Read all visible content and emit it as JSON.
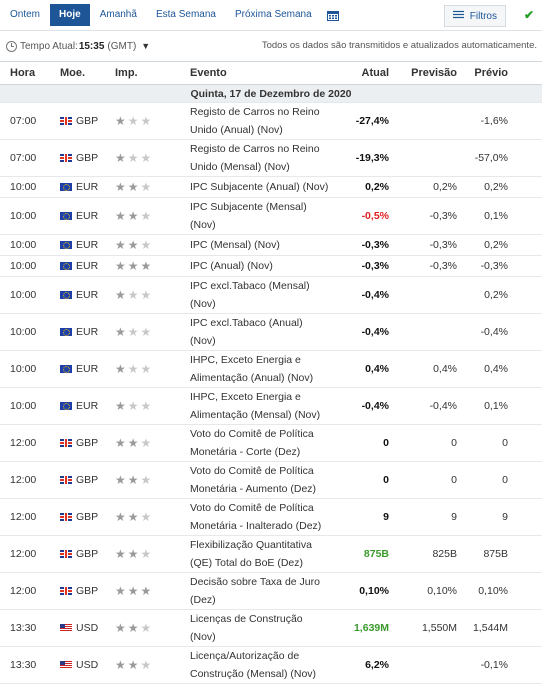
{
  "tabs": [
    {
      "label": "Ontem",
      "active": false
    },
    {
      "label": "Hoje",
      "active": true
    },
    {
      "label": "Amanhã",
      "active": false
    },
    {
      "label": "Esta Semana",
      "active": false
    },
    {
      "label": "Próxima Semana",
      "active": false
    }
  ],
  "filters_label": "Filtros",
  "timebar": {
    "label": "Tempo Atual:",
    "time": "15:35",
    "zone": "(GMT)",
    "notice": "Todos os dados são transmitidos e atualizados automaticamente."
  },
  "columns": {
    "hora": "Hora",
    "moeda": "Moe.",
    "imp": "Imp.",
    "evento": "Evento",
    "atual": "Atual",
    "previsao": "Previsão",
    "previo": "Prévio"
  },
  "date_header": "Quinta, 17 de Dezembro de 2020",
  "colors": {
    "accent": "#1d5596",
    "better": "#3a9a2c",
    "worse": "#e02020"
  },
  "rows": [
    {
      "time": "07:00",
      "flag": "gb",
      "cur": "GBP",
      "imp": 1,
      "event": "Registo de Carros no Reino Unido (Anual) (Nov)",
      "actual": "-27,4%",
      "astate": "black",
      "forecast": "",
      "previous": "-1,6%"
    },
    {
      "time": "07:00",
      "flag": "gb",
      "cur": "GBP",
      "imp": 1,
      "event": "Registo de Carros no Reino Unido (Mensal) (Nov)",
      "actual": "-19,3%",
      "astate": "black",
      "forecast": "",
      "previous": "-57,0%"
    },
    {
      "time": "10:00",
      "flag": "eu",
      "cur": "EUR",
      "imp": 2,
      "event": "IPC Subjacente (Anual) (Nov)",
      "actual": "0,2%",
      "astate": "black",
      "forecast": "0,2%",
      "previous": "0,2%"
    },
    {
      "time": "10:00",
      "flag": "eu",
      "cur": "EUR",
      "imp": 2,
      "event": "IPC Subjacente (Mensal) (Nov)",
      "actual": "-0,5%",
      "astate": "red",
      "forecast": "-0,3%",
      "previous": "0,1%"
    },
    {
      "time": "10:00",
      "flag": "eu",
      "cur": "EUR",
      "imp": 2,
      "event": "IPC (Mensal) (Nov)",
      "actual": "-0,3%",
      "astate": "black",
      "forecast": "-0,3%",
      "previous": "0,2%"
    },
    {
      "time": "10:00",
      "flag": "eu",
      "cur": "EUR",
      "imp": 3,
      "event": "IPC (Anual) (Nov)",
      "actual": "-0,3%",
      "astate": "black",
      "forecast": "-0,3%",
      "previous": "-0,3%"
    },
    {
      "time": "10:00",
      "flag": "eu",
      "cur": "EUR",
      "imp": 1,
      "event": "IPC excl.Tabaco (Mensal) (Nov)",
      "actual": "-0,4%",
      "astate": "black",
      "forecast": "",
      "previous": "0,2%"
    },
    {
      "time": "10:00",
      "flag": "eu",
      "cur": "EUR",
      "imp": 1,
      "event": "IPC excl.Tabaco (Anual) (Nov)",
      "actual": "-0,4%",
      "astate": "black",
      "forecast": "",
      "previous": "-0,4%"
    },
    {
      "time": "10:00",
      "flag": "eu",
      "cur": "EUR",
      "imp": 1,
      "event": "IHPC, Exceto Energia e Alimentação (Anual) (Nov)",
      "actual": "0,4%",
      "astate": "black",
      "forecast": "0,4%",
      "previous": "0,4%"
    },
    {
      "time": "10:00",
      "flag": "eu",
      "cur": "EUR",
      "imp": 1,
      "event": "IHPC, Exceto Energia e Alimentação (Mensal) (Nov)",
      "actual": "-0,4%",
      "astate": "black",
      "forecast": "-0,4%",
      "previous": "0,1%"
    },
    {
      "time": "12:00",
      "flag": "gb",
      "cur": "GBP",
      "imp": 2,
      "event": "Voto do Comitê de Política Monetária - Corte (Dez)",
      "actual": "0",
      "astate": "black",
      "forecast": "0",
      "previous": "0"
    },
    {
      "time": "12:00",
      "flag": "gb",
      "cur": "GBP",
      "imp": 2,
      "event": "Voto do Comitê de Política Monetária - Aumento (Dez)",
      "actual": "0",
      "astate": "black",
      "forecast": "0",
      "previous": "0"
    },
    {
      "time": "12:00",
      "flag": "gb",
      "cur": "GBP",
      "imp": 2,
      "event": "Voto do Comitê de Política Monetária - Inalterado (Dez)",
      "actual": "9",
      "astate": "black",
      "forecast": "9",
      "previous": "9"
    },
    {
      "time": "12:00",
      "flag": "gb",
      "cur": "GBP",
      "imp": 2,
      "event": "Flexibilização Quantitativa (QE) Total do BoE (Dez)",
      "actual": "875B",
      "astate": "green",
      "forecast": "825B",
      "previous": "875B"
    },
    {
      "time": "12:00",
      "flag": "gb",
      "cur": "GBP",
      "imp": 3,
      "event": "Decisão sobre Taxa de Juro (Dez)",
      "actual": "0,10%",
      "astate": "black",
      "forecast": "0,10%",
      "previous": "0,10%"
    },
    {
      "time": "13:30",
      "flag": "us",
      "cur": "USD",
      "imp": 2,
      "event": "Licenças de Construção (Nov)",
      "actual": "1,639M",
      "astate": "green",
      "forecast": "1,550M",
      "previous": "1,544M"
    },
    {
      "time": "13:30",
      "flag": "us",
      "cur": "USD",
      "imp": 2,
      "event": "Licença/Autorização de Construção (Mensal) (Nov)",
      "actual": "6,2%",
      "astate": "black",
      "forecast": "",
      "previous": "-0,1%"
    }
  ]
}
